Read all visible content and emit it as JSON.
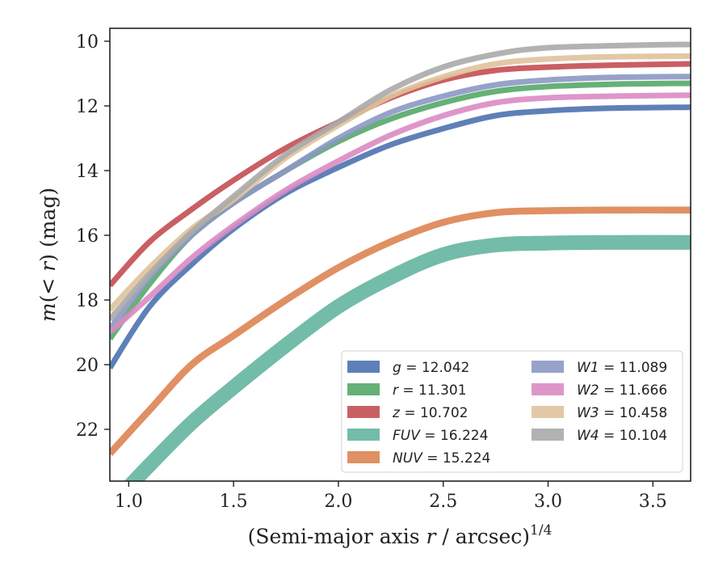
{
  "chart_data": {
    "type": "line",
    "xlabel": "(Semi-major axis r / arcsec)",
    "xlabel_var": "r",
    "xlabel_pre": "(Semi-major axis ",
    "xlabel_post": " / arcsec)",
    "xlabel_sup": "1/4",
    "ylabel": "m(<r) (mag)",
    "ylabel_pre": "m",
    "ylabel_mid": "(< ",
    "ylabel_r": "r",
    "ylabel_post": ") (mag)",
    "xlim": [
      0.91,
      3.68
    ],
    "ylim": [
      23.6,
      9.6
    ],
    "y_inverted": true,
    "xticks": [
      "1.0",
      "1.5",
      "2.0",
      "2.5",
      "3.0",
      "3.5"
    ],
    "xtick_values": [
      1.0,
      1.5,
      2.0,
      2.5,
      3.0,
      3.5
    ],
    "yticks": [
      "10",
      "12",
      "14",
      "16",
      "18",
      "20",
      "22"
    ],
    "ytick_values": [
      10,
      12,
      14,
      16,
      18,
      20,
      22
    ],
    "grid": false,
    "legend_placement": "lower-right",
    "legend_columns": 2,
    "series": [
      {
        "name": "g",
        "value": "12.042",
        "color": "#4c72b0",
        "x": [
          0.91,
          1.1,
          1.3,
          1.5,
          1.75,
          2.0,
          2.25,
          2.5,
          2.75,
          3.0,
          3.3,
          3.68
        ],
        "y": [
          20.1,
          18.2,
          16.9,
          15.8,
          14.7,
          13.9,
          13.2,
          12.7,
          12.3,
          12.15,
          12.07,
          12.04
        ],
        "band": 0.06
      },
      {
        "name": "r",
        "value": "11.301",
        "color": "#55a868",
        "x": [
          0.91,
          1.1,
          1.3,
          1.5,
          1.75,
          2.0,
          2.25,
          2.5,
          2.75,
          3.0,
          3.3,
          3.68
        ],
        "y": [
          19.2,
          17.5,
          16.0,
          15.0,
          14.0,
          13.1,
          12.4,
          11.9,
          11.55,
          11.4,
          11.33,
          11.3
        ],
        "band": 0.06
      },
      {
        "name": "z",
        "value": "10.702",
        "color": "#c44e52",
        "x": [
          0.91,
          1.1,
          1.3,
          1.5,
          1.75,
          2.0,
          2.25,
          2.5,
          2.75,
          3.0,
          3.3,
          3.68
        ],
        "y": [
          17.55,
          16.2,
          15.2,
          14.3,
          13.3,
          12.5,
          11.75,
          11.2,
          10.9,
          10.8,
          10.74,
          10.7
        ],
        "band": 0.06
      },
      {
        "name": "FUV",
        "value": "16.224",
        "color": "#64b5a0",
        "x": [
          0.91,
          1.1,
          1.3,
          1.5,
          1.75,
          2.0,
          2.25,
          2.5,
          2.75,
          3.0,
          3.28,
          3.68
        ],
        "y": [
          24.4,
          23.1,
          21.8,
          20.7,
          19.4,
          18.2,
          17.3,
          16.6,
          16.3,
          16.24,
          16.22,
          16.22
        ],
        "band": 0.2
      },
      {
        "name": "NUV",
        "value": "15.224",
        "color": "#dd8452",
        "x": [
          0.91,
          1.1,
          1.3,
          1.5,
          1.75,
          2.0,
          2.25,
          2.5,
          2.75,
          3.0,
          3.3,
          3.68
        ],
        "y": [
          22.75,
          21.4,
          20.0,
          19.1,
          18.0,
          17.0,
          16.2,
          15.6,
          15.3,
          15.24,
          15.22,
          15.22
        ],
        "band": 0.08
      },
      {
        "name": "W1",
        "value": "11.089",
        "color": "#8c98c4",
        "x": [
          0.91,
          1.1,
          1.3,
          1.5,
          1.75,
          2.0,
          2.25,
          2.5,
          2.75,
          3.0,
          3.3,
          3.68
        ],
        "y": [
          18.9,
          17.3,
          16.0,
          15.0,
          14.0,
          13.0,
          12.2,
          11.7,
          11.35,
          11.2,
          11.12,
          11.09
        ],
        "band": 0.06
      },
      {
        "name": "W2",
        "value": "11.666",
        "color": "#da8bc3",
        "x": [
          0.91,
          1.1,
          1.3,
          1.5,
          1.75,
          2.0,
          2.25,
          2.5,
          2.75,
          3.0,
          3.3,
          3.68
        ],
        "y": [
          19.0,
          17.9,
          16.7,
          15.7,
          14.6,
          13.7,
          12.9,
          12.3,
          11.9,
          11.75,
          11.7,
          11.67
        ],
        "band": 0.06
      },
      {
        "name": "W3",
        "value": "10.458",
        "color": "#dfc29b",
        "x": [
          0.91,
          1.1,
          1.3,
          1.5,
          1.75,
          2.0,
          2.25,
          2.5,
          2.75,
          3.0,
          3.3,
          3.68
        ],
        "y": [
          18.3,
          17.0,
          15.8,
          14.9,
          13.6,
          12.6,
          11.7,
          11.1,
          10.7,
          10.55,
          10.48,
          10.46
        ],
        "band": 0.06
      },
      {
        "name": "W4",
        "value": "10.104",
        "color": "#aaaaaa",
        "x": [
          0.91,
          1.1,
          1.3,
          1.5,
          1.75,
          2.0,
          2.25,
          2.5,
          2.75,
          3.0,
          3.45,
          3.68
        ],
        "y": [
          18.6,
          17.2,
          15.9,
          14.8,
          13.5,
          12.5,
          11.5,
          10.8,
          10.4,
          10.2,
          10.12,
          10.1
        ],
        "band": 0.06
      }
    ]
  }
}
